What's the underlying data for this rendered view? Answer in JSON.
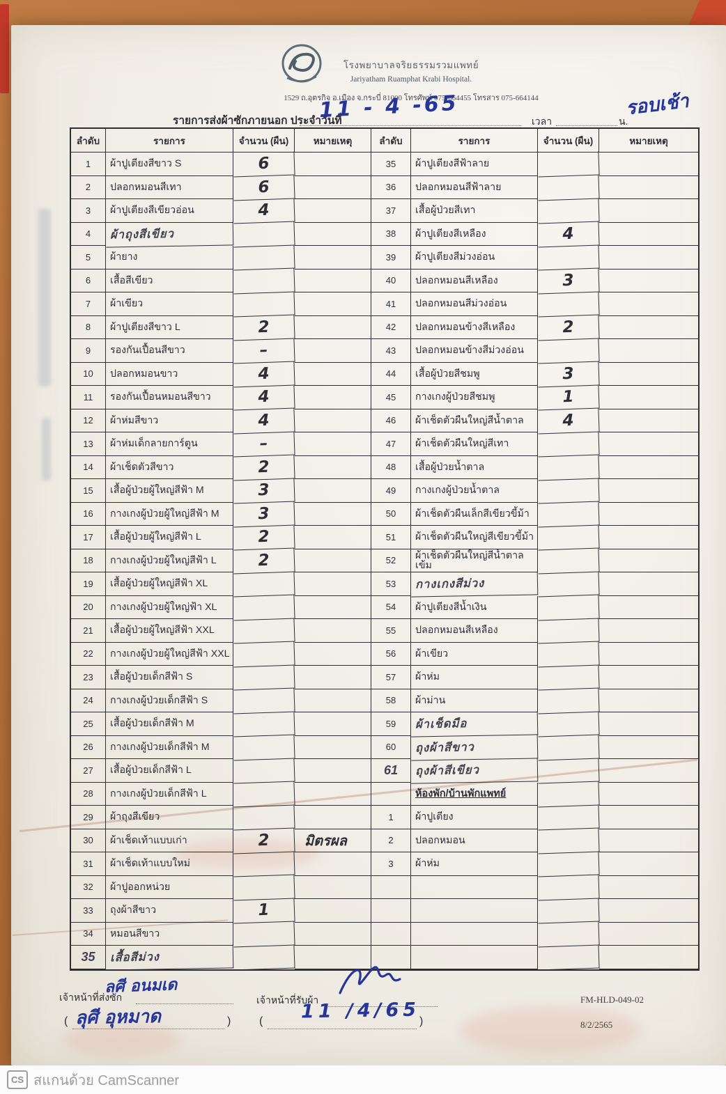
{
  "header": {
    "hospital_th": "โรงพยาบาลจริยธรรมรวมแพทย์",
    "hospital_en": "Jariyatham Ruamphat Krabi Hospital.",
    "address": "1529 ถ.อุตรกิจ อ.เมือง จ.กระบี่ 81000 โทรศัพท์ 075-664455 โทรสาร 075-664144",
    "title_prefix": "รายการส่งผ้าซักภายนอก ประจำวันที่",
    "date_handwritten": "11 - 4 -65",
    "time_label": "เวลา",
    "time_unit": "น.",
    "time_handwritten": "รอบเช้า"
  },
  "table": {
    "headers": {
      "no": "ลำดับ",
      "item": "รายการ",
      "qty": "จำนวน (ผืน)",
      "remark": "หมายเหตุ"
    },
    "rows": [
      {
        "l": {
          "no": "1",
          "item": "ผ้าปูเตียงสีขาว S",
          "qty": "6"
        },
        "r": {
          "no": "35",
          "item": "ผ้าปูเตียงสีฟ้าลาย"
        }
      },
      {
        "l": {
          "no": "2",
          "item": "ปลอกหมอนสีเทา",
          "qty": "6"
        },
        "r": {
          "no": "36",
          "item": "ปลอกหมอนสีฟ้าลาย"
        }
      },
      {
        "l": {
          "no": "3",
          "item": "ผ้าปูเตียงสีเขียวอ่อน",
          "qty": "4"
        },
        "r": {
          "no": "37",
          "item": "เสื้อผู้ป่วยสีเทา"
        }
      },
      {
        "l": {
          "no": "4",
          "item": "ผ้าถุงสีเขียว",
          "hwi": true
        },
        "r": {
          "no": "38",
          "item": "ผ้าปูเตียงสีเหลือง",
          "qty": "4"
        }
      },
      {
        "l": {
          "no": "5",
          "item": "ผ้ายาง"
        },
        "r": {
          "no": "39",
          "item": "ผ้าปูเตียงสีม่วงอ่อน"
        }
      },
      {
        "l": {
          "no": "6",
          "item": "เสื้อสีเขียว"
        },
        "r": {
          "no": "40",
          "item": "ปลอกหมอนสีเหลือง",
          "qty": "3"
        }
      },
      {
        "l": {
          "no": "7",
          "item": "ผ้าเขียว"
        },
        "r": {
          "no": "41",
          "item": "ปลอกหมอนสีม่วงอ่อน"
        }
      },
      {
        "l": {
          "no": "8",
          "item": "ผ้าปูเตียงสีขาว L",
          "qty": "2"
        },
        "r": {
          "no": "42",
          "item": "ปลอกหมอนข้างสีเหลือง",
          "qty": "2"
        }
      },
      {
        "l": {
          "no": "9",
          "item": "รองกันเปื้อนสีขาว",
          "qty": "–"
        },
        "r": {
          "no": "43",
          "item": "ปลอกหมอนข้างสีม่วงอ่อน"
        }
      },
      {
        "l": {
          "no": "10",
          "item": "ปลอกหมอนขาว",
          "qty": "4"
        },
        "r": {
          "no": "44",
          "item": "เสื้อผู้ป่วยสีชมพู",
          "qty": "3"
        }
      },
      {
        "l": {
          "no": "11",
          "item": "รองกันเปื้อนหมอนสีขาว",
          "qty": "4"
        },
        "r": {
          "no": "45",
          "item": "กางเกงผู้ป่วยสีชมพู",
          "qty": "1"
        }
      },
      {
        "l": {
          "no": "12",
          "item": "ผ้าห่มสีขาว",
          "qty": "4"
        },
        "r": {
          "no": "46",
          "item": "ผ้าเช็ดตัวผืนใหญ่สีน้ำตาล",
          "qty": "4"
        }
      },
      {
        "l": {
          "no": "13",
          "item": "ผ้าห่มเด็กลายการ์ตูน",
          "qty": "–"
        },
        "r": {
          "no": "47",
          "item": "ผ้าเช็ดตัวผืนใหญ่สีเทา"
        }
      },
      {
        "l": {
          "no": "14",
          "item": "ผ้าเช็ดตัวสีขาว",
          "qty": "2"
        },
        "r": {
          "no": "48",
          "item": "เสื้อผู้ป่วยน้ำตาล"
        }
      },
      {
        "l": {
          "no": "15",
          "item": "เสื้อผู้ป่วยผู้ใหญ่สีฟ้า M",
          "qty": "3"
        },
        "r": {
          "no": "49",
          "item": "กางเกงผู้ป่วยน้ำตาล"
        }
      },
      {
        "l": {
          "no": "16",
          "item": "กางเกงผู้ป่วยผู้ใหญ่สีฟ้า M",
          "qty": "3"
        },
        "r": {
          "no": "50",
          "item": "ผ้าเช็ดตัวผืนเล็กสีเขียวขี้ม้า"
        }
      },
      {
        "l": {
          "no": "17",
          "item": "เสื้อผู้ป่วยผู้ใหญ่สีฟ้า L",
          "qty": "2"
        },
        "r": {
          "no": "51",
          "item": "ผ้าเช็ดตัวผืนใหญ่สีเขียวขี้ม้า"
        }
      },
      {
        "l": {
          "no": "18",
          "item": "กางเกงผู้ป่วยผู้ใหญ่สีฟ้า L",
          "qty": "2"
        },
        "r": {
          "no": "52",
          "item": "ผ้าเช็ดตัวผืนใหญ่สีน้ำตาลเข้ม"
        }
      },
      {
        "l": {
          "no": "19",
          "item": "เสื้อผู้ป่วยผู้ใหญ่สีฟ้า XL"
        },
        "r": {
          "no": "53",
          "item": "กางเกงสีม่วง",
          "hwi": true
        }
      },
      {
        "l": {
          "no": "20",
          "item": "กางเกงผู้ป่วยผู้ใหญ่ฟ้า XL"
        },
        "r": {
          "no": "54",
          "item": "ผ้าปูเตียงสีน้ำเงิน"
        }
      },
      {
        "l": {
          "no": "21",
          "item": "เสื้อผู้ป่วยผู้ใหญ่สีฟ้า XXL"
        },
        "r": {
          "no": "55",
          "item": "ปลอกหมอนสีเหลือง"
        }
      },
      {
        "l": {
          "no": "22",
          "item": "กางเกงผู้ป่วยผู้ใหญ่สีฟ้า XXL"
        },
        "r": {
          "no": "56",
          "item": "ผ้าเขียว"
        }
      },
      {
        "l": {
          "no": "23",
          "item": "เสื้อผู้ป่วยเด็กสีฟ้า S"
        },
        "r": {
          "no": "57",
          "item": "ผ้าห่ม"
        }
      },
      {
        "l": {
          "no": "24",
          "item": "กางเกงผู้ป่วยเด็กสีฟ้า S"
        },
        "r": {
          "no": "58",
          "item": "ผ้าม่าน"
        }
      },
      {
        "l": {
          "no": "25",
          "item": "เสื้อผู้ป่วยเด็กสีฟ้า M"
        },
        "r": {
          "no": "59",
          "item": "ผ้าเช็ดมือ",
          "hwi": true
        }
      },
      {
        "l": {
          "no": "26",
          "item": "กางเกงผู้ป่วยเด็กสีฟ้า M"
        },
        "r": {
          "no": "60",
          "item": "ถุงผ้าสีขาว",
          "hwi": true
        }
      },
      {
        "l": {
          "no": "27",
          "item": "เสื้อผู้ป่วยเด็กสีฟ้า L"
        },
        "r": {
          "no": "61",
          "item": "ถุงผ้าสีเขียว",
          "hwi": true,
          "hwn": true
        }
      },
      {
        "l": {
          "no": "28",
          "item": "กางเกงผู้ป่วยเด็กสีฟ้า L"
        },
        "r": {
          "item": "ห้องพัก/บ้านพักแพทย์",
          "sec": true
        }
      },
      {
        "l": {
          "no": "29",
          "item": "ผ้าถุงสีเขียว"
        },
        "r": {
          "no": "1",
          "item": "ผ้าปูเตียง"
        }
      },
      {
        "l": {
          "no": "30",
          "item": "ผ้าเช็ดเท้าแบบเก่า",
          "qty": "2",
          "remark": "มิตรผล"
        },
        "r": {
          "no": "2",
          "item": "ปลอกหมอน"
        }
      },
      {
        "l": {
          "no": "31",
          "item": "ผ้าเช็ดเท้าแบบใหม่"
        },
        "r": {
          "no": "3",
          "item": "ผ้าห่ม"
        }
      },
      {
        "l": {
          "no": "32",
          "item": "ผ้าปูออกหน่วย"
        },
        "r": {}
      },
      {
        "l": {
          "no": "33",
          "item": "ถุงผ้าสีขาว",
          "qty": "1"
        },
        "r": {}
      },
      {
        "l": {
          "no": "34",
          "item": "หมอนสีขาว"
        },
        "r": {}
      },
      {
        "l": {
          "no": "35",
          "item": "เสื้อสีม่วง",
          "hwi": true,
          "hwn": true
        },
        "r": {}
      }
    ]
  },
  "footer": {
    "sender_label": "เจ้าหน้าที่ส่งซัก",
    "sender_signature": "ลศี อนมเด",
    "sender_name": "ลุศี อุหมาด",
    "receiver_label": "เจ้าหน้าที่รับผ้า",
    "receiver_date": "11 /4/65",
    "form_code": "FM-HLD-049-02",
    "form_date": "8/2/2565"
  },
  "scan_footer": {
    "badge": "CS",
    "text": "สแกนด้วย CamScanner"
  },
  "colors": {
    "pen_blue": "#26359b",
    "wood": "#b4703c"
  }
}
